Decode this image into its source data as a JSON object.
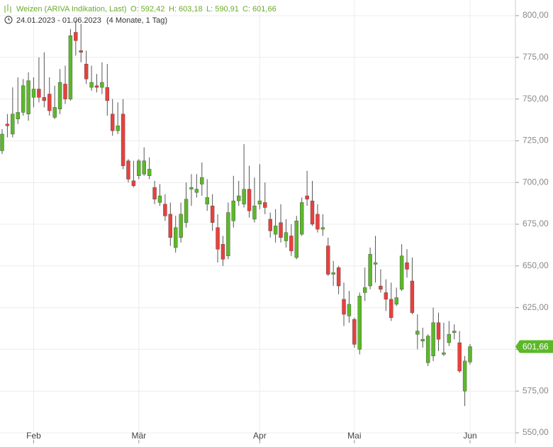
{
  "header": {
    "instrument": "Weizen (ARIVA Indikation, Last)",
    "open": "O: 592,42",
    "high": "H: 603,18",
    "low": "L: 590,91",
    "close": "C: 601,66",
    "range": "24.01.2023 - 01.06.2023",
    "duration": "(4 Monate, 1 Tag)"
  },
  "chart_data": {
    "type": "candlestick",
    "categories": [
      null,
      null,
      null,
      null,
      null,
      null,
      "Feb",
      null,
      null,
      null,
      null,
      null,
      null,
      null,
      null,
      null,
      null,
      null,
      null,
      null,
      null,
      null,
      null,
      null,
      null,
      null,
      "Mär",
      null,
      null,
      null,
      null,
      null,
      null,
      null,
      null,
      null,
      null,
      null,
      null,
      null,
      null,
      null,
      null,
      null,
      null,
      null,
      null,
      null,
      null,
      "Apr",
      null,
      null,
      null,
      null,
      null,
      null,
      null,
      null,
      null,
      null,
      null,
      null,
      null,
      null,
      null,
      null,
      null,
      "Mai",
      null,
      null,
      null,
      null,
      null,
      null,
      null,
      null,
      null,
      null,
      null,
      null,
      null,
      null,
      null,
      null,
      null,
      null,
      null,
      null,
      null,
      "Jun"
    ],
    "open": [
      719,
      735,
      729,
      738,
      742,
      741,
      751,
      756,
      751,
      753,
      739,
      744,
      759,
      750,
      790,
      779,
      771,
      757,
      758,
      757,
      757,
      741,
      731,
      741,
      713,
      701,
      704,
      705,
      704,
      697,
      688,
      687,
      681,
      661,
      667,
      676,
      696,
      694,
      699,
      687,
      686,
      673,
      663,
      656,
      677,
      689,
      687,
      696,
      678,
      687,
      688,
      678,
      669,
      676,
      665,
      668,
      655,
      669,
      692,
      689,
      681,
      672,
      662,
      645,
      649,
      630,
      620,
      618,
      600,
      634,
      638,
      651,
      638,
      634,
      630,
      627,
      636,
      652,
      641,
      609,
      605,
      592,
      596,
      616,
      597,
      604,
      610,
      604,
      575,
      592.42
    ],
    "high": [
      732,
      741,
      757,
      763,
      762,
      766,
      763,
      775,
      778,
      763,
      758,
      768,
      770,
      792,
      797,
      795,
      779,
      770,
      765,
      772,
      771,
      750,
      748,
      750,
      714,
      713,
      714,
      721,
      715,
      701,
      699,
      693,
      688,
      680,
      688,
      700,
      705,
      705,
      712,
      702,
      693,
      681,
      668,
      688,
      704,
      701,
      723,
      710,
      703,
      711,
      700,
      682,
      684,
      687,
      678,
      675,
      680,
      691,
      707,
      701,
      687,
      681,
      667,
      653,
      650,
      640,
      635,
      619,
      634,
      649,
      661,
      668,
      648,
      642,
      640,
      637,
      663,
      660,
      655,
      621,
      613,
      609,
      625,
      622,
      616,
      617,
      615,
      611,
      596,
      603.18
    ],
    "low": [
      717,
      727,
      727,
      735,
      740,
      737,
      745,
      748,
      745,
      740,
      738,
      741,
      747,
      749,
      776,
      772,
      759,
      755,
      754,
      753,
      740,
      728,
      729,
      708,
      700,
      697,
      702,
      704,
      702,
      687,
      686,
      677,
      662,
      658,
      664,
      673,
      686,
      691,
      692,
      683,
      671,
      652,
      650,
      654,
      673,
      686,
      685,
      679,
      676,
      684,
      681,
      667,
      664,
      664,
      661,
      656,
      654,
      668,
      686,
      674,
      670,
      668,
      644,
      638,
      633,
      614,
      616,
      601,
      597,
      629,
      636,
      640,
      634,
      623,
      617,
      626,
      635,
      643,
      621,
      600,
      601,
      590,
      593,
      599,
      596,
      602,
      606,
      586,
      566,
      590.91
    ],
    "close": [
      729,
      734,
      741,
      742,
      758,
      761,
      756,
      751,
      749,
      743,
      745,
      760,
      750,
      788,
      785,
      778,
      762,
      760,
      757,
      760,
      749,
      731,
      734,
      710,
      702,
      698,
      713,
      713,
      708,
      690,
      692,
      680,
      667,
      673,
      681,
      690,
      697,
      696,
      703,
      691,
      676,
      660,
      654,
      682,
      689,
      692,
      696,
      683,
      686,
      689,
      685,
      671,
      674,
      667,
      670,
      659,
      677,
      688,
      690,
      675,
      672,
      673,
      645,
      646,
      638,
      621,
      627,
      603,
      632,
      637,
      657,
      652,
      636,
      630,
      619,
      631,
      656,
      648,
      622,
      611,
      606,
      608,
      616,
      606,
      598,
      609,
      611,
      587,
      593,
      601.66
    ],
    "up_color": "#5cb82a",
    "down_color": "#e8403e",
    "last_label": "601,66",
    "ylim": [
      544.9,
      809.35
    ],
    "yticks": [
      {
        "value": 550,
        "label": "550,00"
      },
      {
        "value": 575,
        "label": "575,00"
      },
      {
        "value": 600,
        "label": "600,00"
      },
      {
        "value": 625,
        "label": "625,00"
      },
      {
        "value": 650,
        "label": "650,00"
      },
      {
        "value": 675,
        "label": "675,00"
      },
      {
        "value": 700,
        "label": "700,00"
      },
      {
        "value": 725,
        "label": "725,00"
      },
      {
        "value": 750,
        "label": "750,00"
      },
      {
        "value": 775,
        "label": "775,00"
      },
      {
        "value": 800,
        "label": "800,00"
      }
    ],
    "grid": true
  }
}
